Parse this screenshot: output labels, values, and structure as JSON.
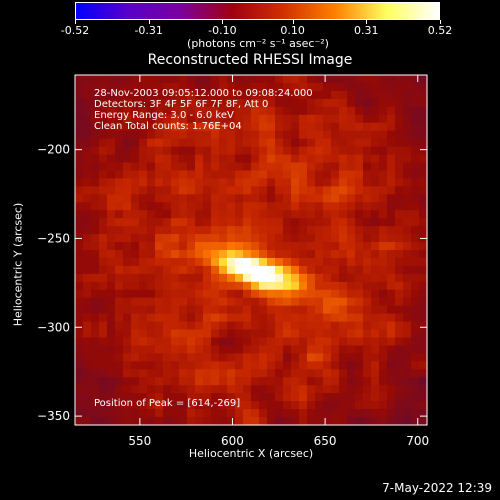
{
  "colorbar": {
    "tick_labels": [
      "-0.52",
      "-0.31",
      "-0.10",
      "0.10",
      "0.31",
      "0.52"
    ],
    "tick_values": [
      -0.52,
      -0.31,
      -0.1,
      0.1,
      0.31,
      0.52
    ],
    "range": [
      -0.52,
      0.52
    ],
    "units_label": "(photons cm⁻² s⁻¹ asec⁻²)",
    "colors": [
      "#0000ff",
      "#5a00c8",
      "#7a00a0",
      "#a00010",
      "#d03000",
      "#ff8000",
      "#ffff60",
      "#ffffff"
    ]
  },
  "chart_data": {
    "type": "heatmap",
    "title": "Reconstructed RHESSI Image",
    "xlabel": "Heliocentric X (arcsec)",
    "ylabel": "Heliocentric Y (arcsec)",
    "xlim": [
      515,
      705
    ],
    "ylim": [
      -355,
      -158
    ],
    "x_ticks": [
      550,
      600,
      650,
      700
    ],
    "y_ticks": [
      -200,
      -250,
      -300,
      -350
    ],
    "x_tick_labels": [
      "550",
      "600",
      "650",
      "700"
    ],
    "y_tick_labels": [
      "−200",
      "−250",
      "−300",
      "−350"
    ],
    "peak": [
      614,
      -269
    ],
    "annotations": {
      "time": "28-Nov-2003 09:05:12.000 to 09:08:24.000",
      "detectors": "Detectors: 3F 4F 5F 6F 7F 8F, Att 0",
      "energy": "Energy Range: 3.0 - 6.0 keV",
      "clean": "Clean     Total counts: 1.76E+04",
      "peak_text": "Position of Peak = [614,-269]"
    }
  },
  "footer": {
    "date": "7-May-2022 12:39"
  }
}
